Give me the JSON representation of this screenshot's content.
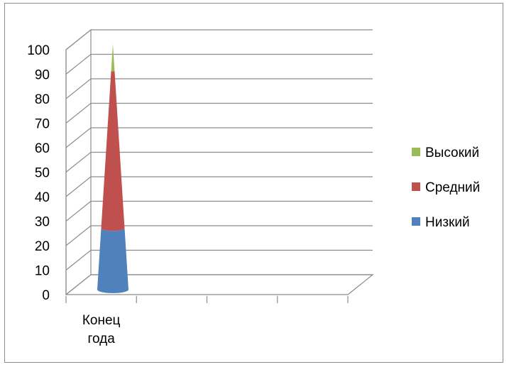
{
  "chart_data": {
    "type": "bar",
    "style": "3d-cone-stacked",
    "title": "",
    "xlabel": "",
    "ylabel": "",
    "categories": [
      "Конец года"
    ],
    "category_lines": [
      "Конец",
      "года"
    ],
    "ylim": [
      0,
      100
    ],
    "y_ticks": [
      0,
      10,
      20,
      30,
      40,
      50,
      60,
      70,
      80,
      90,
      100
    ],
    "grid": true,
    "legend_position": "right",
    "series": [
      {
        "name": "Низкий",
        "values": [
          25
        ],
        "color": "#4f81bd"
      },
      {
        "name": "Средний",
        "values": [
          64
        ],
        "color": "#c0504d"
      },
      {
        "name": "Высокий",
        "values": [
          11
        ],
        "color": "#9bbb59"
      }
    ]
  }
}
